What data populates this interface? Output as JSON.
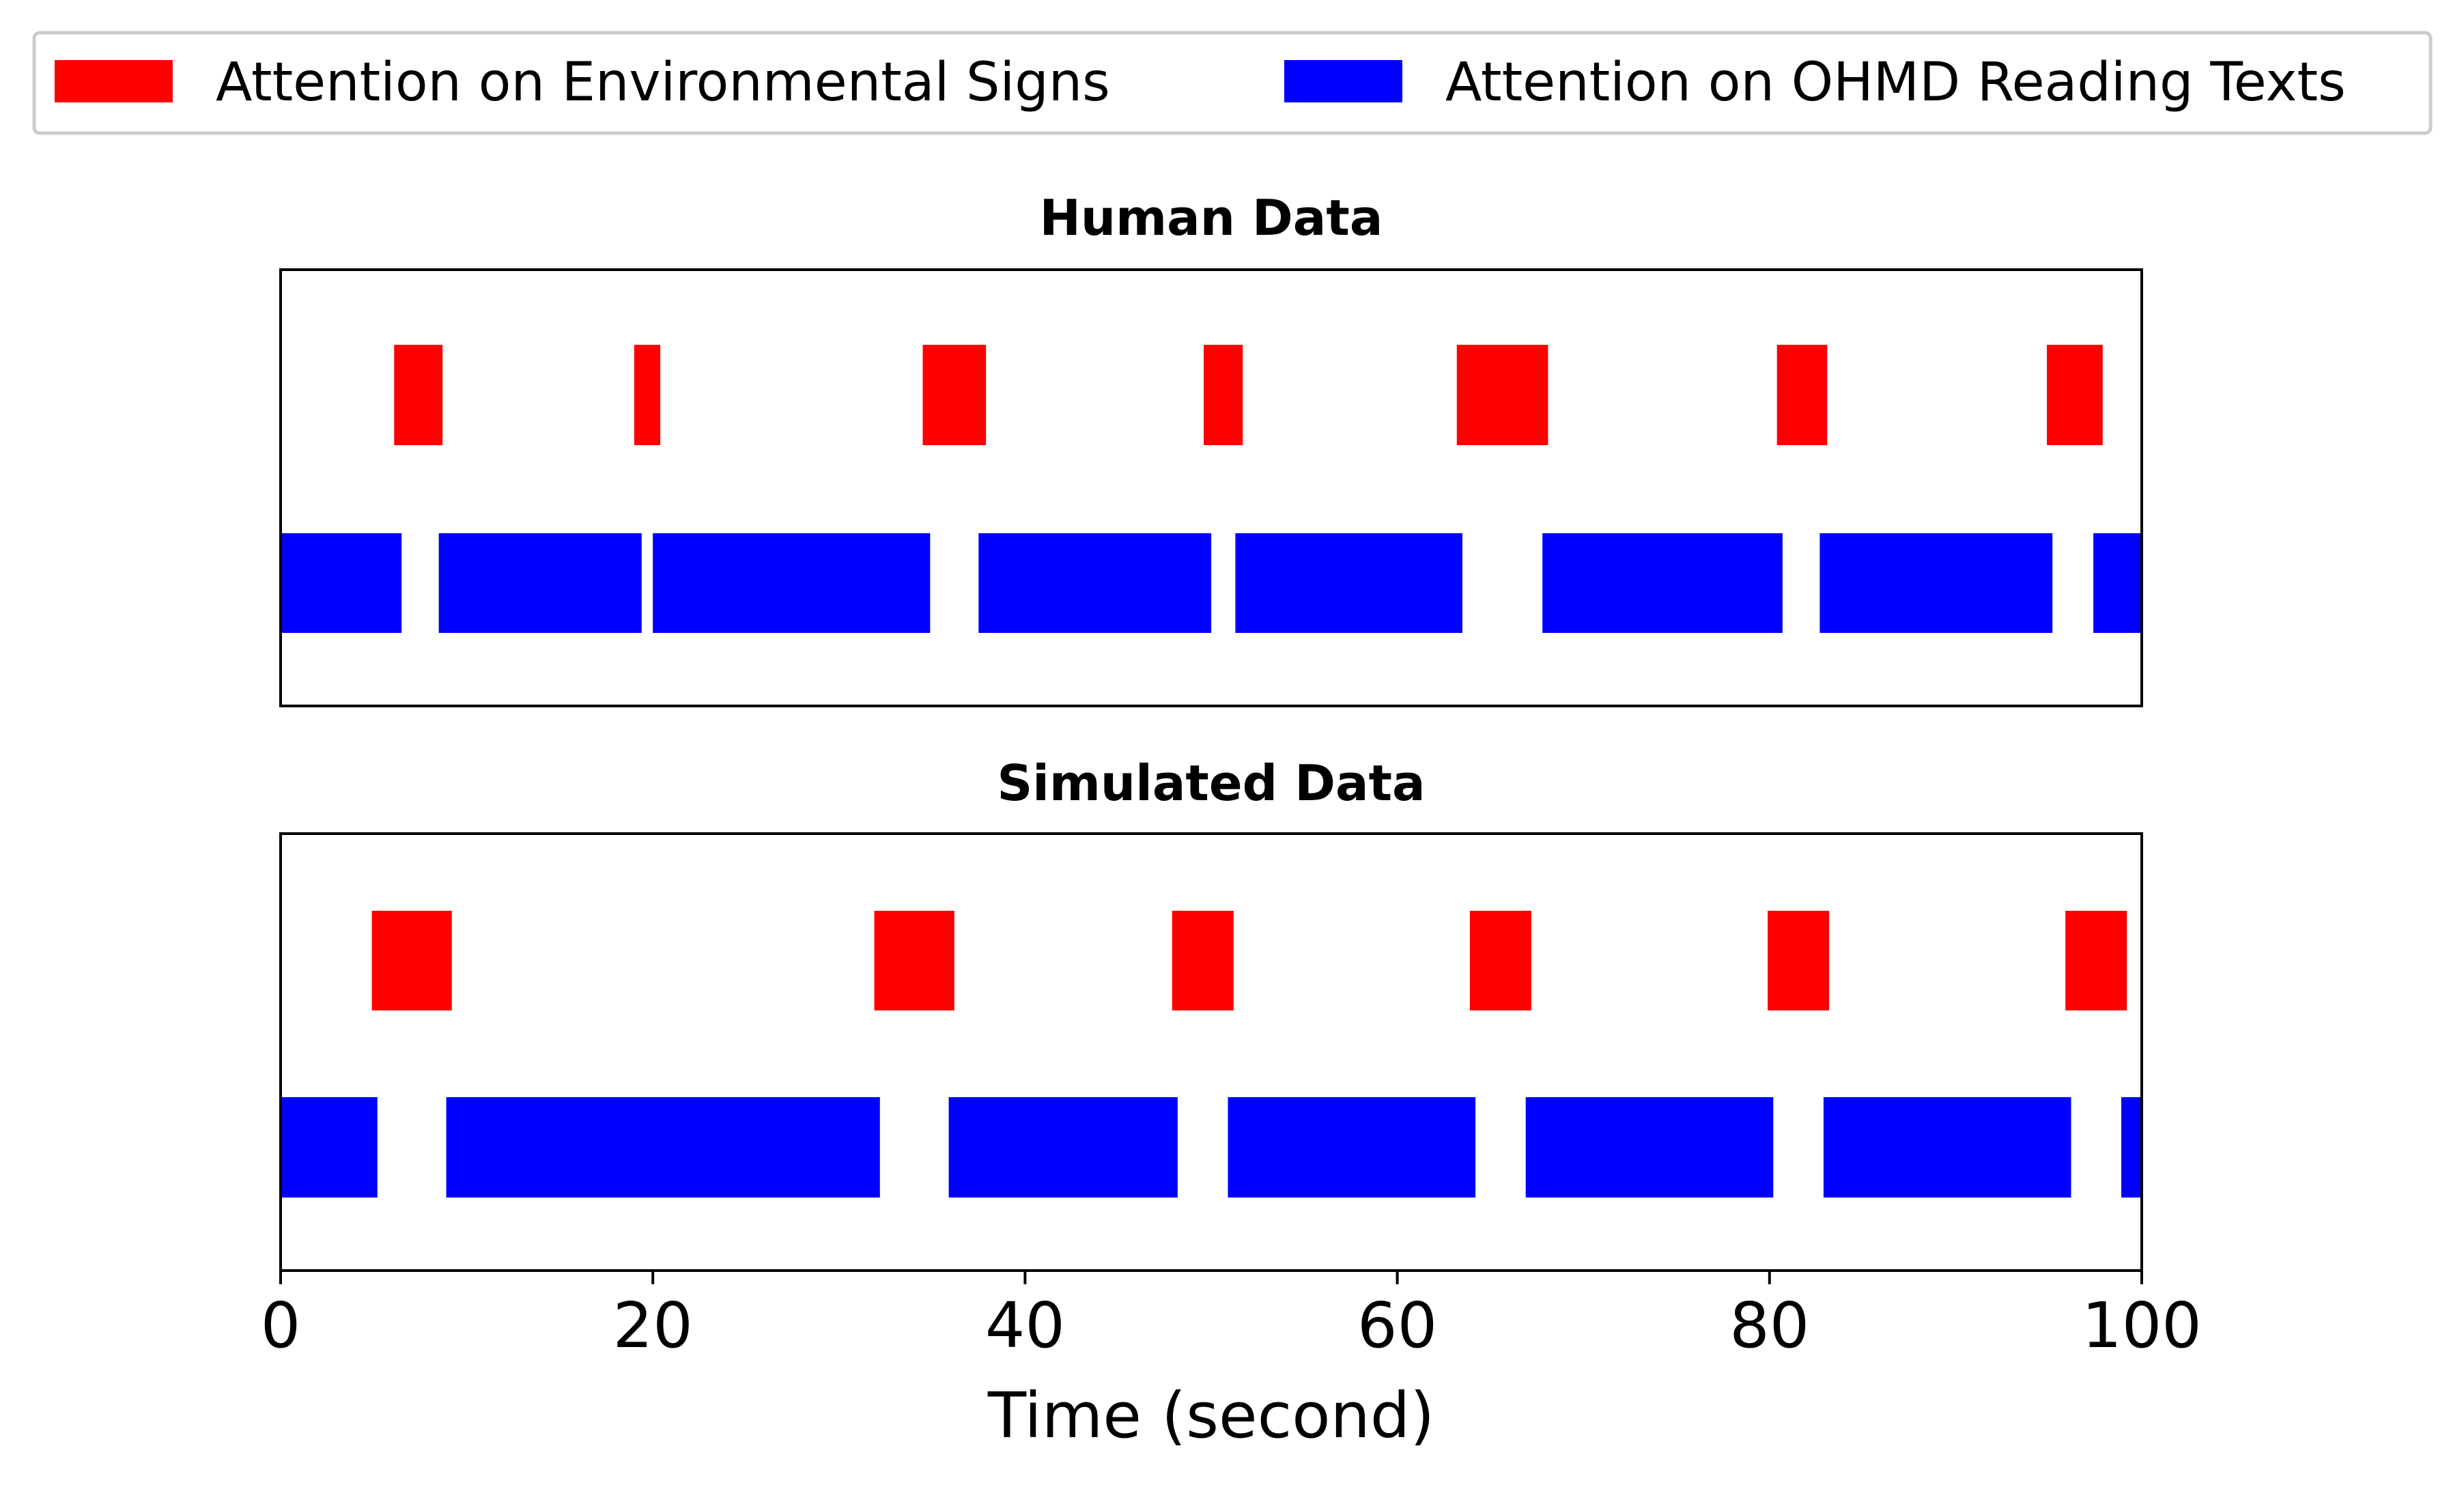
{
  "chart_data": {
    "type": "timeline",
    "legend": {
      "placement": "top",
      "entries": [
        {
          "key": "env",
          "label": "Attention on Environmental Signs",
          "color": "#ff0000"
        },
        {
          "key": "ohmd",
          "label": "Attention on OHMD Reading Texts",
          "color": "#0000ff"
        }
      ]
    },
    "xlabel": "Time (second)",
    "xlim": [
      0,
      100
    ],
    "xticks": [
      "0",
      "20",
      "40",
      "60",
      "80",
      "100"
    ],
    "grid": false,
    "panels": [
      {
        "title": "Human Data",
        "series": [
          {
            "key": "env",
            "intervals": [
              [
                6.1,
                8.7
              ],
              [
                19.0,
                20.4
              ],
              [
                34.5,
                37.9
              ],
              [
                49.6,
                51.7
              ],
              [
                63.2,
                68.1
              ],
              [
                80.4,
                83.1
              ],
              [
                94.9,
                97.9
              ]
            ]
          },
          {
            "key": "ohmd",
            "intervals": [
              [
                0,
                6.5
              ],
              [
                8.5,
                19.4
              ],
              [
                20.0,
                34.9
              ],
              [
                37.5,
                50.0
              ],
              [
                51.3,
                63.5
              ],
              [
                67.8,
                80.7
              ],
              [
                82.7,
                95.2
              ],
              [
                97.4,
                100
              ]
            ]
          }
        ]
      },
      {
        "title": "Simulated Data",
        "series": [
          {
            "key": "env",
            "intervals": [
              [
                4.9,
                9.2
              ],
              [
                31.9,
                36.2
              ],
              [
                47.9,
                51.2
              ],
              [
                63.9,
                67.2
              ],
              [
                79.9,
                83.2
              ],
              [
                95.9,
                99.2
              ]
            ]
          },
          {
            "key": "ohmd",
            "intervals": [
              [
                0,
                5.2
              ],
              [
                8.9,
                32.2
              ],
              [
                35.9,
                48.2
              ],
              [
                50.9,
                64.2
              ],
              [
                66.9,
                80.2
              ],
              [
                82.9,
                96.2
              ],
              [
                98.9,
                100
              ]
            ]
          }
        ]
      }
    ]
  }
}
